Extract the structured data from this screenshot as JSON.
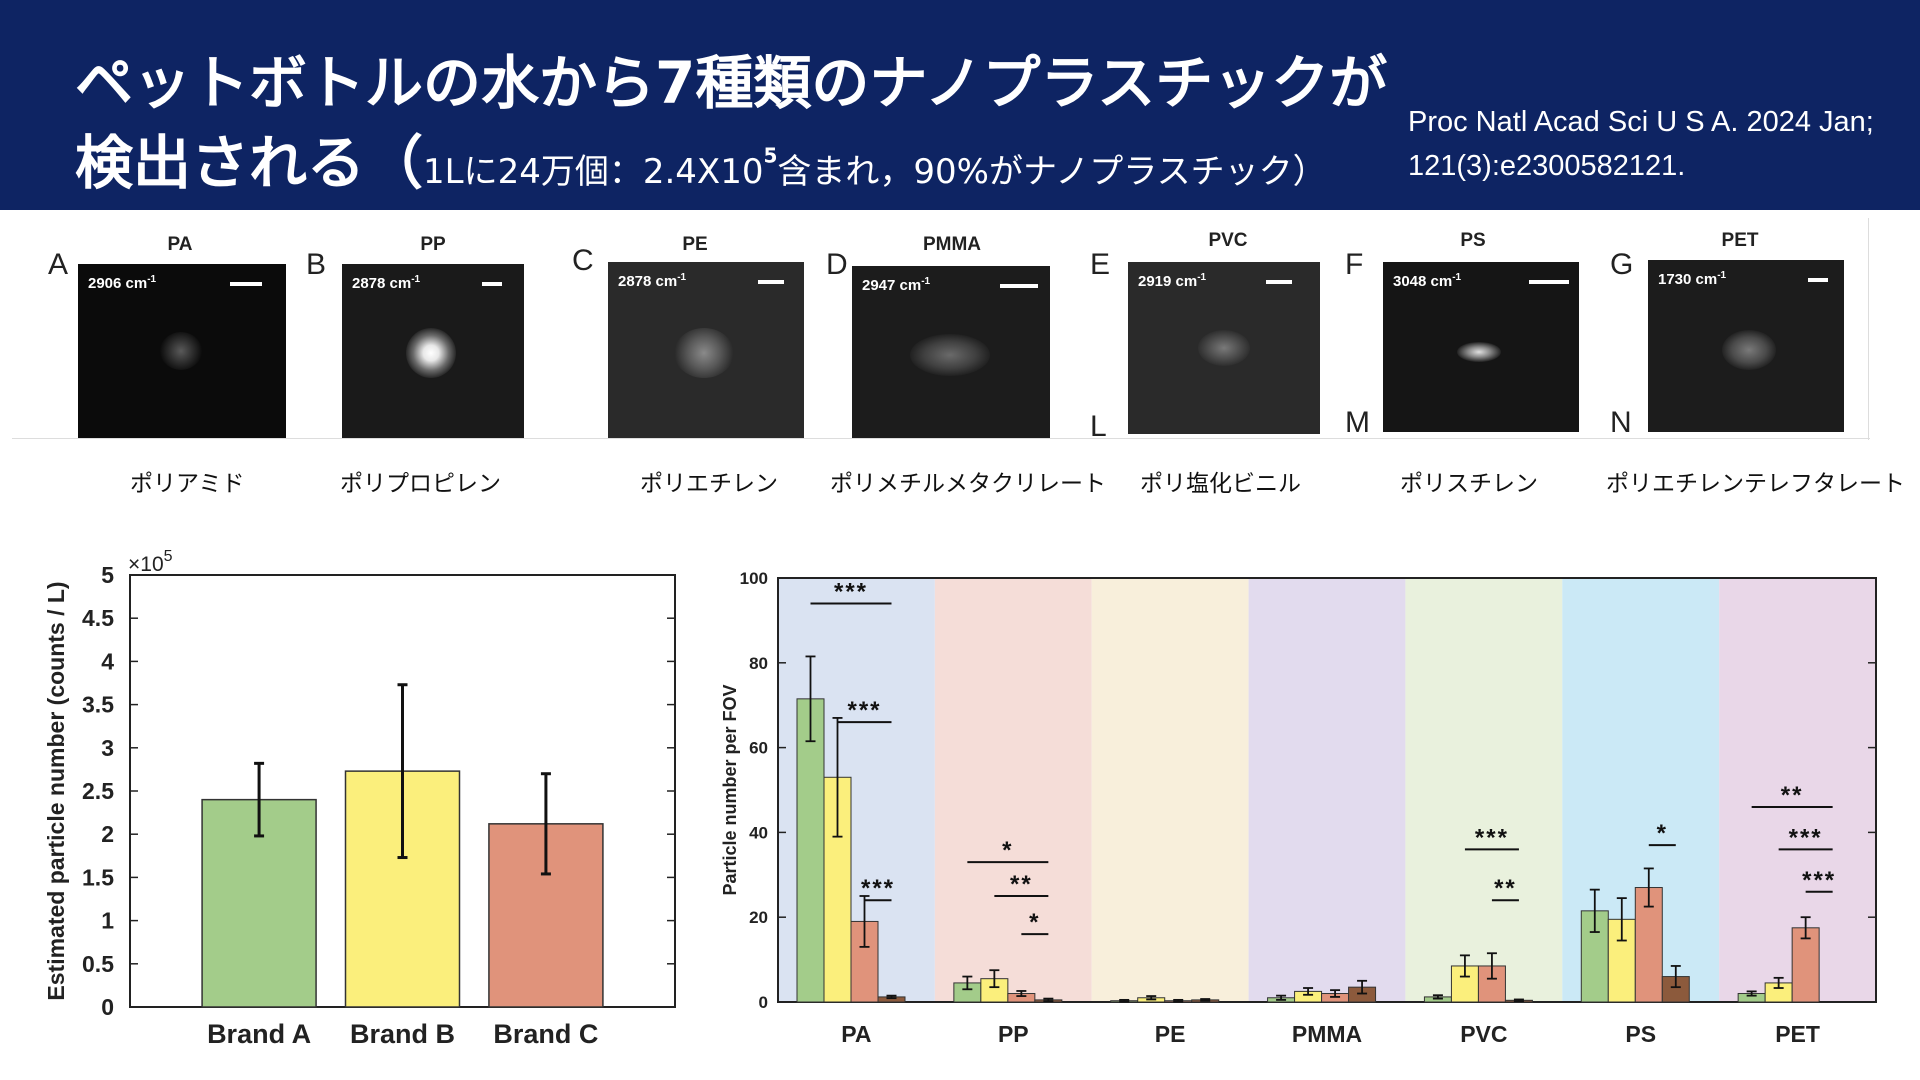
{
  "header": {
    "title_line1": "ペットボトルの水から7種類のナノプラスチックが",
    "title_line2_main": "検出される（",
    "title_line2_sub_a": "1Lに24万個：2.4X10",
    "title_line2_sup": "5",
    "title_line2_sub_b": "含まれ，90%がナノプラスチック）",
    "citation_line1": "Proc Natl Acad Sci U S A. 2024 Jan;",
    "citation_line2": "121(3):e2300582121."
  },
  "panels": [
    {
      "letter": "A",
      "name": "PA",
      "wavenumber": "2906 cm",
      "jp_name": "ポリアミド"
    },
    {
      "letter": "B",
      "name": "PP",
      "wavenumber": "2878 cm",
      "jp_name": "ポリプロピレン"
    },
    {
      "letter": "C",
      "name": "PE",
      "wavenumber": "2878 cm",
      "jp_name": "ポリエチレン"
    },
    {
      "letter": "D",
      "name": "PMMA",
      "wavenumber": "2947 cm",
      "jp_name": "ポリメチルメタクリレート"
    },
    {
      "letter": "E",
      "name": "PVC",
      "wavenumber": "2919 cm",
      "jp_name": "ポリ塩化ビニル"
    },
    {
      "letter": "F",
      "name": "PS",
      "wavenumber": "3048 cm",
      "jp_name": "ポリスチレン"
    },
    {
      "letter": "G",
      "name": "PET",
      "wavenumber": "1730 cm",
      "jp_name": "ポリエチレンテレフタレート"
    }
  ],
  "wavenumber_exponent": "-1",
  "panel_corner_letters": [
    "L",
    "M",
    "N"
  ],
  "chart_data": [
    {
      "type": "bar",
      "categories": [
        "Brand A",
        "Brand B",
        "Brand C"
      ],
      "values": [
        2.4,
        2.73,
        2.12
      ],
      "errors": [
        0.42,
        1.0,
        0.58
      ],
      "colors": [
        "#a3cc8a",
        "#fbef7c",
        "#e0937b"
      ],
      "ylabel": "Estimated particle number (counts / L)",
      "ylim": [
        0,
        5
      ],
      "yticks": [
        "0",
        "0.5",
        "1",
        "1.5",
        "2",
        "2.5",
        "3",
        "3.5",
        "4",
        "4.5",
        "5"
      ],
      "multiplier_base": "×10",
      "multiplier_exp": "5"
    },
    {
      "type": "bar",
      "categories": [
        "PA",
        "PP",
        "PE",
        "PMMA",
        "PVC",
        "PS",
        "PET"
      ],
      "ylabel": "Particle number per FOV",
      "ylim": [
        0,
        100
      ],
      "yticks": [
        "0",
        "20",
        "40",
        "60",
        "80",
        "100"
      ],
      "background_colors": [
        "#dae3f2",
        "#f5ddd8",
        "#f8efdb",
        "#e2dbee",
        "#e9f1dd",
        "#cbe9f6",
        "#e9d7e8"
      ],
      "bar_colors": [
        "#a3cc8a",
        "#fbef7c",
        "#e0937b",
        "#8c5a3c"
      ],
      "series": [
        {
          "values": [
            71.5,
            4.5,
            0.3,
            1.0,
            1.2,
            21.5,
            2.0
          ],
          "errors": [
            10.0,
            1.5,
            0.2,
            0.5,
            0.4,
            5.0,
            0.5
          ]
        },
        {
          "values": [
            53.0,
            5.5,
            1.0,
            2.5,
            8.5,
            19.5,
            4.5
          ],
          "errors": [
            14.0,
            2.0,
            0.4,
            0.8,
            2.5,
            5.0,
            1.2
          ]
        },
        {
          "values": [
            19.0,
            2.0,
            0.3,
            2.0,
            8.5,
            27.0,
            17.5
          ],
          "errors": [
            6.0,
            0.6,
            0.2,
            0.8,
            3.0,
            4.5,
            2.5
          ]
        },
        {
          "values": [
            1.2,
            0.5,
            0.5,
            3.5,
            0.4,
            6.0,
            null
          ],
          "errors": [
            0.3,
            0.3,
            0.2,
            1.5,
            0.2,
            2.5,
            null
          ]
        }
      ],
      "significance": [
        {
          "group": "PA",
          "label": "***",
          "y": 94,
          "from": 0,
          "to": 3
        },
        {
          "group": "PA",
          "label": "***",
          "y": 66,
          "from": 1,
          "to": 3
        },
        {
          "group": "PA",
          "label": "***",
          "y": 24,
          "from": 2,
          "to": 3
        },
        {
          "group": "PP",
          "label": "*",
          "y": 33,
          "from": 0,
          "to": 3
        },
        {
          "group": "PP",
          "label": "**",
          "y": 25,
          "from": 1,
          "to": 3
        },
        {
          "group": "PP",
          "label": "*",
          "y": 16,
          "from": 2,
          "to": 3
        },
        {
          "group": "PVC",
          "label": "***",
          "y": 36,
          "from": 1,
          "to": 3
        },
        {
          "group": "PVC",
          "label": "**",
          "y": 24,
          "from": 2,
          "to": 3
        },
        {
          "group": "PS",
          "label": "*",
          "y": 37,
          "from": 2,
          "to": 3
        },
        {
          "group": "PET",
          "label": "**",
          "y": 46,
          "from": 0,
          "to": 3
        },
        {
          "group": "PET",
          "label": "***",
          "y": 36,
          "from": 1,
          "to": 3
        },
        {
          "group": "PET",
          "label": "***",
          "y": 26,
          "from": 2,
          "to": 3
        }
      ]
    }
  ]
}
